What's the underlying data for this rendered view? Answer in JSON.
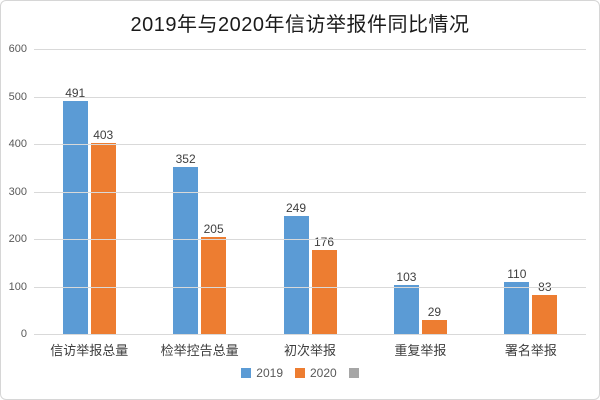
{
  "title": "2019年与2020年信访举报件同比情况",
  "colors": {
    "series_2019": "#5B9BD5",
    "series_2020": "#ED7D31",
    "series_empty": "#A6A6A6",
    "gridline": "#D9D9D9",
    "axis_text": "#595959",
    "value_text": "#404040",
    "title_text": "#1A1A1A"
  },
  "legend": {
    "items": [
      {
        "label": "2019",
        "color": "#5B9BD5"
      },
      {
        "label": "2020",
        "color": "#ED7D31"
      },
      {
        "label": "",
        "color": "#A6A6A6"
      }
    ]
  },
  "chart_data": {
    "type": "bar",
    "title": "2019年与2020年信访举报件同比情况",
    "categories": [
      "信访举报总量",
      "检举控告总量",
      "初次举报",
      "重复举报",
      "署名举报"
    ],
    "series": [
      {
        "name": "2019",
        "color": "#5B9BD5",
        "values": [
          491,
          352,
          249,
          103,
          110
        ]
      },
      {
        "name": "2020",
        "color": "#ED7D31",
        "values": [
          403,
          205,
          176,
          29,
          83
        ]
      },
      {
        "name": "",
        "color": "#A6A6A6",
        "values": []
      }
    ],
    "xlabel": "",
    "ylabel": "",
    "ylim": [
      0,
      600
    ],
    "yticks": [
      0,
      100,
      200,
      300,
      400,
      500,
      600
    ],
    "grid": true,
    "legend_position": "bottom",
    "value_labels": true
  }
}
